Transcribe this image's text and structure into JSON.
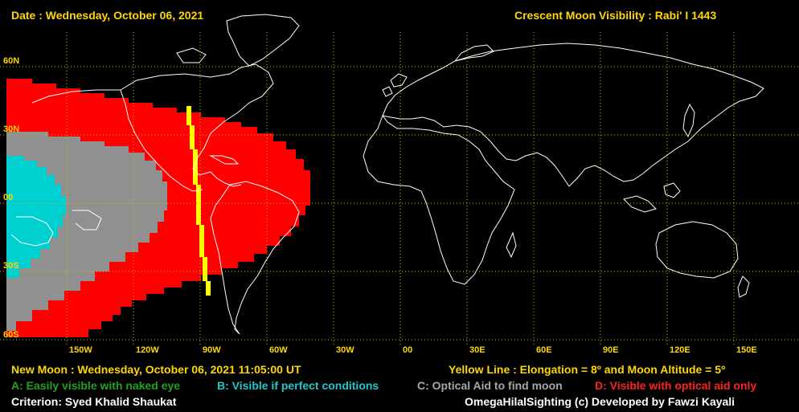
{
  "header": {
    "date": "Date : Wednesday, October 06, 2021",
    "title": "Crescent Moon Visibility : Rabi' I  1443"
  },
  "lat_labels": [
    "60N",
    "30N",
    "00",
    "30S",
    "60S"
  ],
  "lon_labels": [
    "150W",
    "120W",
    "90W",
    "60W",
    "30W",
    "00",
    "30E",
    "60E",
    "90E",
    "120E",
    "150E"
  ],
  "footer": {
    "new_moon": "New Moon : Wednesday, October 06, 2021  11:05:00  UT",
    "yellow_line": "Yellow Line : Elongation = 8º  and Moon Altitude = 5º",
    "legend_a": "A: Easily visible with naked eye",
    "legend_b": "B: Visible if perfect conditions",
    "legend_c": "C: Optical Aid to find moon",
    "legend_d": "D: Visible with optical aid only",
    "criterion": "Criterion: Syed Khalid Shaukat",
    "credit": "OmegaHilalSighting  (c)  Developed by Fawzi Kayali"
  },
  "colors": {
    "zone_a": "#20a020",
    "zone_b": "#00d0d0",
    "zone_c": "#909090",
    "zone_d": "#ff0000",
    "yellow_line": "#ffff00",
    "grid": "#c8c800",
    "coast": "#ffffff",
    "label": "#ffd700"
  }
}
